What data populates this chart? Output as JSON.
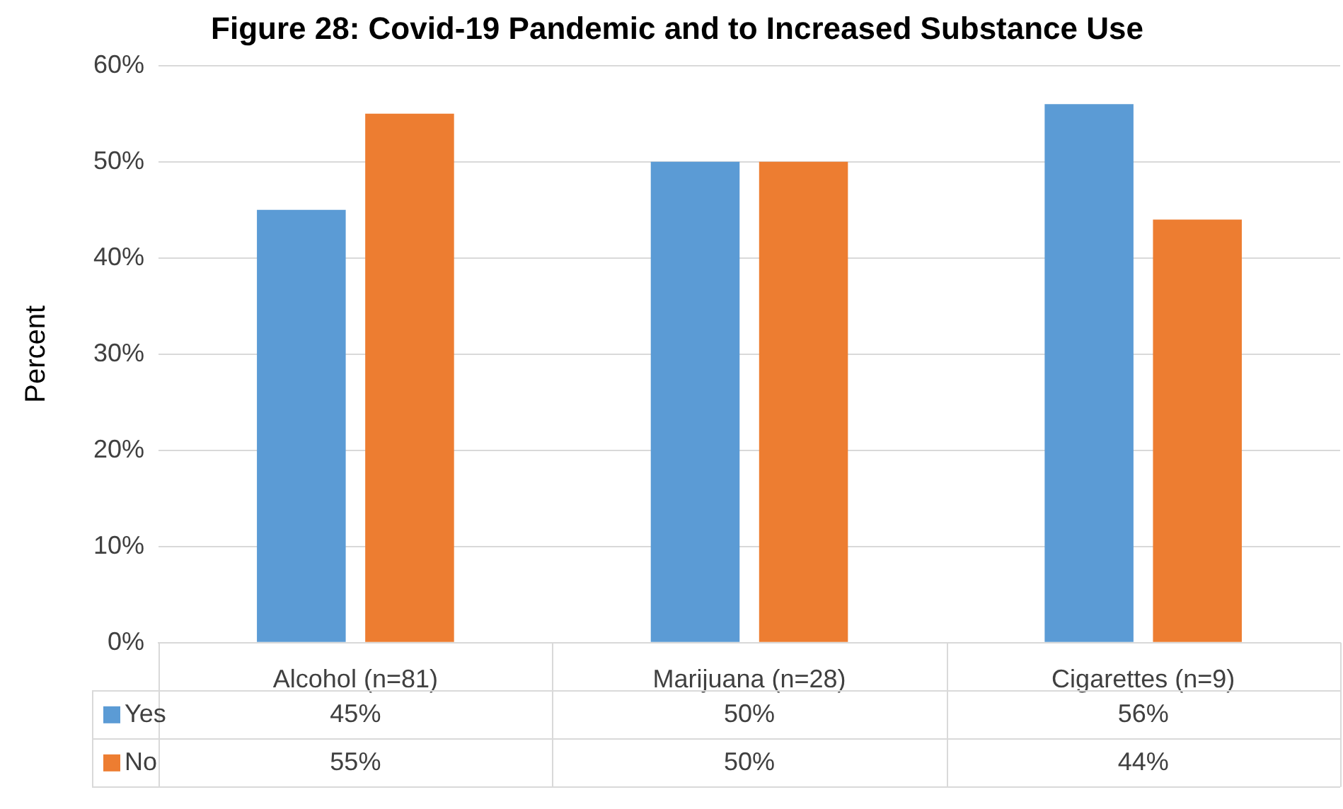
{
  "chart_data": {
    "type": "bar",
    "title": "Figure 28: Covid-19 Pandemic and to Increased Substance Use",
    "ylabel": "Percent",
    "categories": [
      "Alcohol (n=81)",
      "Marijuana (n=28)",
      "Cigarettes (n=9)"
    ],
    "series": [
      {
        "name": "Yes",
        "color": "#5b9bd5",
        "values": [
          45,
          50,
          56
        ],
        "value_labels": [
          "45%",
          "50%",
          "56%"
        ]
      },
      {
        "name": "No",
        "color": "#ed7d31",
        "values": [
          55,
          50,
          44
        ],
        "value_labels": [
          "55%",
          "50%",
          "44%"
        ]
      }
    ],
    "ylim": [
      0,
      60
    ],
    "yticks": [
      {
        "value": 0,
        "label": "0%"
      },
      {
        "value": 10,
        "label": "10%"
      },
      {
        "value": 20,
        "label": "20%"
      },
      {
        "value": 30,
        "label": "30%"
      },
      {
        "value": 40,
        "label": "40%"
      },
      {
        "value": 50,
        "label": "50%"
      },
      {
        "value": 60,
        "label": "60%"
      }
    ],
    "grid": "y",
    "legend": "bottom"
  }
}
